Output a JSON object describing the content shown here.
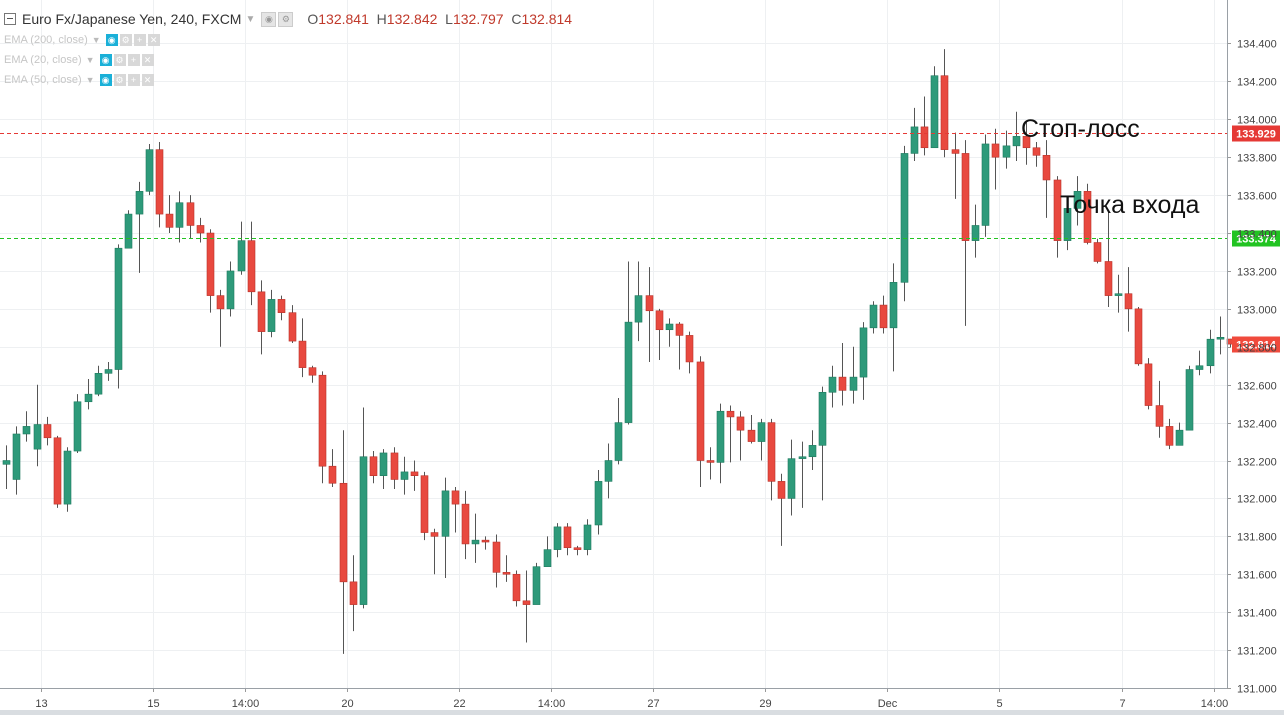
{
  "header": {
    "symbol": "Euro Fx/Japanese Yen, 240, FXCM",
    "open_label": "O",
    "open": "132.841",
    "high_label": "H",
    "high": "132.842",
    "low_label": "L",
    "low": "132.797",
    "close_label": "C",
    "close": "132.814"
  },
  "indicators": [
    {
      "label": "EMA (200, close)"
    },
    {
      "label": "EMA (20, close)"
    },
    {
      "label": "EMA (50, close)"
    }
  ],
  "annotations": {
    "stop_loss": "Стоп-лосс",
    "entry_point": "Точка входа"
  },
  "colors": {
    "up": "#2e9a7a",
    "down": "#e8493f",
    "stop_line": "#e53935",
    "entry_line": "#22c322",
    "current_tag": "#f04a3c"
  },
  "chart_data": {
    "type": "candlestick",
    "ylim": [
      131.0,
      134.45
    ],
    "y_ticks": [
      "134.400",
      "134.200",
      "134.000",
      "133.800",
      "133.600",
      "133.400",
      "133.200",
      "133.000",
      "132.800",
      "132.600",
      "132.400",
      "132.200",
      "132.000",
      "131.800",
      "131.600",
      "131.400",
      "131.200",
      "131.000"
    ],
    "x_ticks": [
      {
        "label": "13",
        "index": 3
      },
      {
        "label": "15",
        "index": 14
      },
      {
        "label": "14:00",
        "index": 23
      },
      {
        "label": "20",
        "index": 33
      },
      {
        "label": "22",
        "index": 44
      },
      {
        "label": "14:00",
        "index": 53
      },
      {
        "label": "27",
        "index": 63
      },
      {
        "label": "29",
        "index": 74
      },
      {
        "label": "Dec",
        "index": 86
      },
      {
        "label": "5",
        "index": 97
      },
      {
        "label": "7",
        "index": 109
      },
      {
        "label": "14:00",
        "index": 118
      }
    ],
    "price_lines": [
      {
        "name": "stop_loss",
        "value": 133.929,
        "label": "133.929"
      },
      {
        "name": "entry",
        "value": 133.374,
        "label": "133.374"
      }
    ],
    "last_price": {
      "value": 132.814,
      "label": "132.814"
    },
    "candles": [
      [
        132.18,
        132.2,
        132.05,
        132.28
      ],
      [
        132.1,
        132.34,
        132.02,
        132.38
      ],
      [
        132.34,
        132.38,
        132.3,
        132.46
      ],
      [
        132.26,
        132.39,
        132.17,
        132.6
      ],
      [
        132.39,
        132.32,
        132.28,
        132.43
      ],
      [
        132.32,
        131.97,
        131.95,
        132.33
      ],
      [
        131.97,
        132.25,
        131.93,
        132.27
      ],
      [
        132.25,
        132.51,
        132.24,
        132.55
      ],
      [
        132.51,
        132.55,
        132.47,
        132.63
      ],
      [
        132.55,
        132.66,
        132.54,
        132.7
      ],
      [
        132.66,
        132.68,
        132.62,
        132.72
      ],
      [
        132.68,
        133.32,
        132.58,
        133.34
      ],
      [
        133.32,
        133.5,
        133.33,
        133.52
      ],
      [
        133.5,
        133.62,
        133.19,
        133.67
      ],
      [
        133.62,
        133.84,
        133.6,
        133.87
      ],
      [
        133.84,
        133.5,
        133.43,
        133.88
      ],
      [
        133.5,
        133.43,
        133.4,
        133.6
      ],
      [
        133.43,
        133.56,
        133.35,
        133.62
      ],
      [
        133.56,
        133.44,
        133.37,
        133.6
      ],
      [
        133.44,
        133.4,
        133.35,
        133.48
      ],
      [
        133.4,
        133.07,
        132.98,
        133.42
      ],
      [
        133.07,
        133.0,
        132.8,
        133.1
      ],
      [
        133.0,
        133.2,
        132.96,
        133.25
      ],
      [
        133.2,
        133.36,
        133.18,
        133.46
      ],
      [
        133.36,
        133.09,
        133.02,
        133.46
      ],
      [
        133.09,
        132.88,
        132.76,
        133.15
      ],
      [
        132.88,
        133.05,
        132.85,
        133.1
      ],
      [
        133.05,
        132.98,
        132.94,
        133.07
      ],
      [
        132.98,
        132.83,
        132.82,
        133.02
      ],
      [
        132.83,
        132.69,
        132.64,
        132.95
      ],
      [
        132.69,
        132.65,
        132.61,
        132.7
      ],
      [
        132.65,
        132.17,
        132.08,
        132.67
      ],
      [
        132.17,
        132.08,
        132.06,
        132.26
      ],
      [
        132.08,
        131.56,
        131.18,
        132.36
      ],
      [
        131.56,
        131.44,
        131.3,
        131.7
      ],
      [
        131.44,
        132.22,
        131.42,
        132.48
      ],
      [
        132.22,
        132.12,
        132.08,
        132.25
      ],
      [
        132.12,
        132.24,
        132.05,
        132.26
      ],
      [
        132.24,
        132.1,
        132.05,
        132.27
      ],
      [
        132.1,
        132.14,
        132.02,
        132.22
      ],
      [
        132.14,
        132.12,
        132.04,
        132.2
      ],
      [
        132.12,
        131.82,
        131.78,
        132.14
      ],
      [
        131.82,
        131.8,
        131.6,
        131.84
      ],
      [
        131.8,
        132.04,
        131.58,
        132.11
      ],
      [
        132.04,
        131.97,
        131.82,
        132.06
      ],
      [
        131.97,
        131.76,
        131.68,
        132.04
      ],
      [
        131.76,
        131.78,
        131.66,
        131.92
      ],
      [
        131.78,
        131.77,
        131.73,
        131.8
      ],
      [
        131.77,
        131.61,
        131.53,
        131.81
      ],
      [
        131.61,
        131.6,
        131.56,
        131.7
      ],
      [
        131.6,
        131.46,
        131.43,
        131.62
      ],
      [
        131.46,
        131.44,
        131.24,
        131.62
      ],
      [
        131.44,
        131.64,
        131.45,
        131.66
      ],
      [
        131.64,
        131.73,
        131.65,
        131.8
      ],
      [
        131.73,
        131.85,
        131.69,
        131.87
      ],
      [
        131.85,
        131.74,
        131.7,
        131.87
      ],
      [
        131.74,
        131.73,
        131.7,
        131.75
      ],
      [
        131.73,
        131.86,
        131.7,
        131.89
      ],
      [
        131.86,
        132.09,
        131.81,
        132.15
      ],
      [
        132.09,
        132.2,
        132.0,
        132.29
      ],
      [
        132.2,
        132.4,
        132.18,
        132.53
      ],
      [
        132.4,
        132.93,
        132.39,
        133.25
      ],
      [
        132.93,
        133.07,
        132.83,
        133.25
      ],
      [
        133.07,
        132.99,
        132.72,
        133.22
      ],
      [
        132.99,
        132.89,
        132.73,
        133.0
      ],
      [
        132.89,
        132.92,
        132.8,
        132.95
      ],
      [
        132.92,
        132.86,
        132.68,
        132.93
      ],
      [
        132.86,
        132.72,
        132.66,
        132.88
      ],
      [
        132.72,
        132.2,
        132.06,
        132.75
      ],
      [
        132.2,
        132.19,
        132.1,
        132.27
      ],
      [
        132.19,
        132.46,
        132.08,
        132.5
      ],
      [
        132.46,
        132.43,
        132.19,
        132.49
      ],
      [
        132.43,
        132.36,
        132.2,
        132.46
      ],
      [
        132.36,
        132.3,
        132.29,
        132.44
      ],
      [
        132.3,
        132.4,
        132.2,
        132.42
      ],
      [
        132.4,
        132.09,
        131.99,
        132.42
      ],
      [
        132.09,
        132.0,
        131.75,
        132.13
      ],
      [
        132.0,
        132.21,
        131.91,
        132.31
      ],
      [
        132.21,
        132.22,
        131.95,
        132.3
      ],
      [
        132.22,
        132.28,
        132.15,
        132.36
      ],
      [
        132.28,
        132.56,
        131.99,
        132.59
      ],
      [
        132.56,
        132.64,
        132.48,
        132.7
      ],
      [
        132.64,
        132.57,
        132.49,
        132.82
      ],
      [
        132.57,
        132.64,
        132.5,
        132.8
      ],
      [
        132.64,
        132.9,
        132.52,
        132.93
      ],
      [
        132.9,
        133.02,
        132.87,
        133.04
      ],
      [
        133.02,
        132.9,
        132.87,
        133.07
      ],
      [
        132.9,
        133.14,
        132.67,
        133.24
      ],
      [
        133.14,
        133.82,
        133.04,
        133.86
      ],
      [
        133.82,
        133.96,
        133.78,
        134.06
      ],
      [
        133.96,
        133.85,
        133.81,
        134.12
      ],
      [
        133.85,
        134.23,
        133.85,
        134.28
      ],
      [
        134.23,
        133.84,
        133.8,
        134.37
      ],
      [
        133.84,
        133.82,
        133.58,
        133.93
      ],
      [
        133.82,
        133.36,
        132.91,
        133.89
      ],
      [
        133.36,
        133.44,
        133.27,
        133.55
      ],
      [
        133.44,
        133.87,
        133.38,
        133.92
      ],
      [
        133.87,
        133.8,
        133.63,
        133.95
      ],
      [
        133.8,
        133.86,
        133.74,
        133.94
      ],
      [
        133.86,
        133.91,
        133.78,
        134.04
      ],
      [
        133.91,
        133.85,
        133.76,
        133.99
      ],
      [
        133.85,
        133.81,
        133.75,
        133.88
      ],
      [
        133.81,
        133.68,
        133.48,
        133.89
      ],
      [
        133.68,
        133.36,
        133.27,
        133.7
      ],
      [
        133.36,
        133.53,
        133.31,
        133.55
      ],
      [
        133.53,
        133.62,
        133.44,
        133.7
      ],
      [
        133.62,
        133.35,
        133.34,
        133.66
      ],
      [
        133.35,
        133.25,
        133.24,
        133.37
      ],
      [
        133.25,
        133.07,
        133.01,
        133.52
      ],
      [
        133.07,
        133.08,
        132.98,
        133.18
      ],
      [
        133.08,
        133.0,
        132.88,
        133.22
      ],
      [
        133.0,
        132.71,
        132.7,
        133.01
      ],
      [
        132.71,
        132.49,
        132.47,
        132.74
      ],
      [
        132.49,
        132.38,
        132.32,
        132.62
      ],
      [
        132.38,
        132.28,
        132.26,
        132.42
      ],
      [
        132.28,
        132.36,
        132.29,
        132.4
      ],
      [
        132.36,
        132.68,
        132.37,
        132.7
      ],
      [
        132.68,
        132.7,
        132.65,
        132.78
      ],
      [
        132.7,
        132.84,
        132.66,
        132.89
      ],
      [
        132.84,
        132.85,
        132.76,
        132.96
      ],
      [
        132.841,
        132.814,
        132.797,
        132.842
      ]
    ]
  }
}
